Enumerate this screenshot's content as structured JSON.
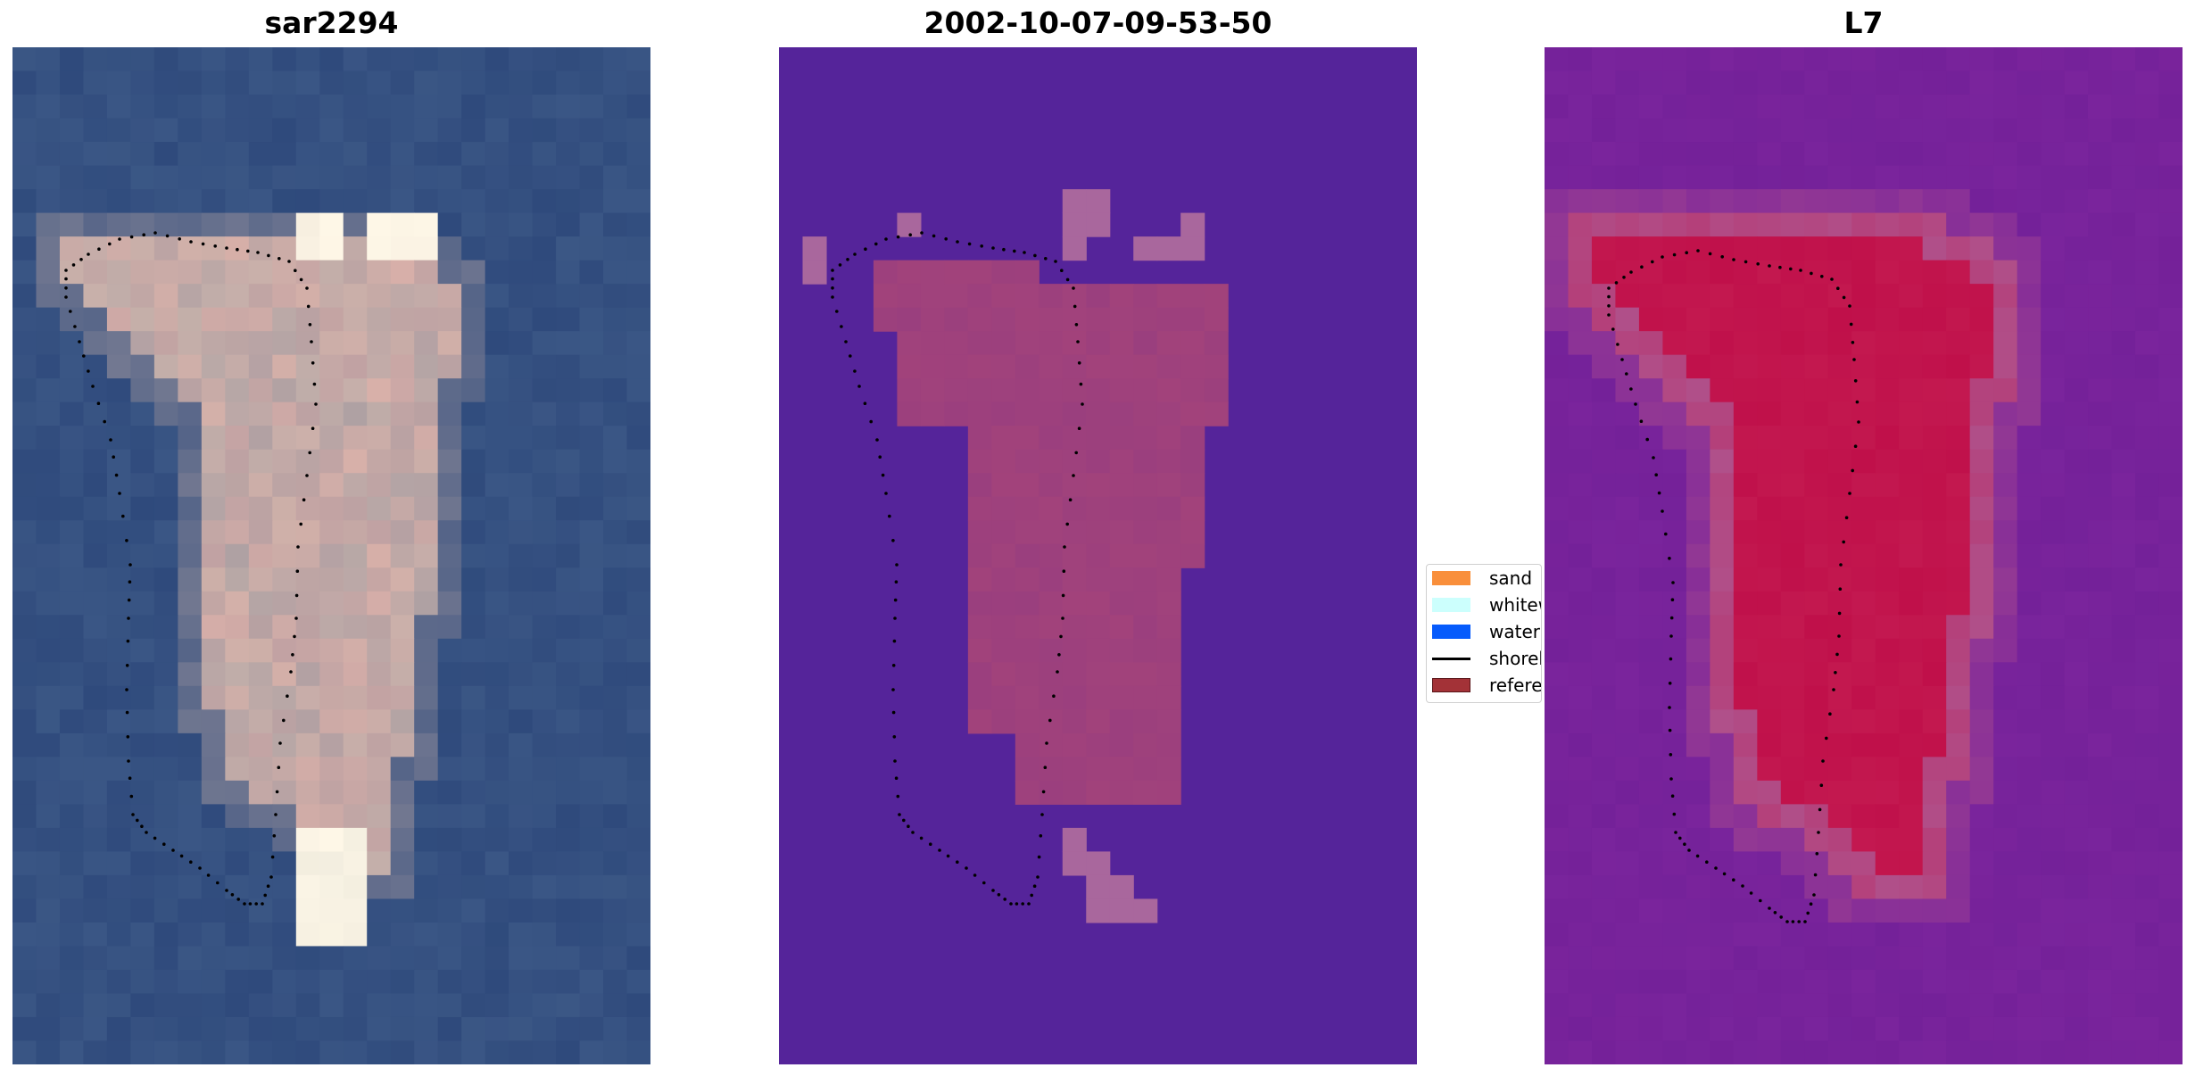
{
  "panels": [
    {
      "title": "sar2294",
      "base_color": "#2f4a7c",
      "shape_color": "#c4b0aa",
      "highlight_color": "#fff8e8",
      "accent_color": "#e8b0a8"
    },
    {
      "title": "2002-10-07-09-53-50",
      "base_color": "#55249a",
      "shape_color": "#9a3f7e",
      "patch_color": "#a9679d"
    },
    {
      "title": "L7",
      "base_color": "#7a249c",
      "shape_color": "#c0104a",
      "halo_color": "#b0508a"
    }
  ],
  "legend": {
    "items": [
      {
        "label": "sand",
        "color": "#f98f3b",
        "kind": "patch"
      },
      {
        "label": "whitewater",
        "color": "#ccfffd",
        "kind": "patch"
      },
      {
        "label": "water",
        "color": "#065bfc",
        "kind": "patch"
      },
      {
        "label": "shoreline",
        "color": "#000000",
        "kind": "line"
      },
      {
        "label": "reference",
        "color": "#a33237",
        "kind": "patch"
      }
    ]
  }
}
